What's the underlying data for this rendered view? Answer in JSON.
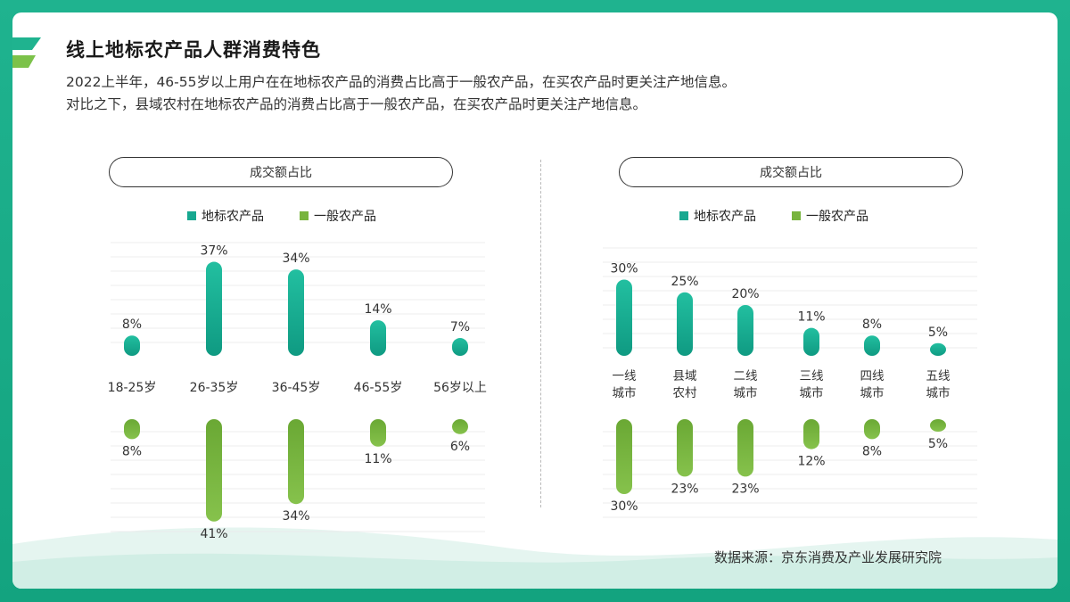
{
  "page": {
    "title": "线上地标农产品人群消费特色",
    "subtitle_lines": [
      "2022上半年，46-55岁以上用户在在地标农产品的消费占比高于一般农产品，在买农产品时更关注产地信息。",
      "对比之下，县域农村在地标农产品的消费占比高于一般农产品，在买农产品时更关注产地信息。"
    ],
    "source": "数据来源：京东消费及产业发展研究院"
  },
  "colors": {
    "geo": "#17a890",
    "general": "#78b43e",
    "frame": "#1aa888"
  },
  "chart_data": [
    {
      "type": "bar",
      "title": "成交额占比",
      "legend": [
        "地标农产品",
        "一般农产品"
      ],
      "categories": [
        "18-25岁",
        "26-35岁",
        "36-45岁",
        "46-55岁",
        "56岁以上"
      ],
      "series": [
        {
          "name": "地标农产品",
          "values": [
            8,
            37,
            34,
            14,
            7
          ],
          "labels": [
            "8%",
            "37%",
            "34%",
            "14%",
            "7%"
          ]
        },
        {
          "name": "一般农产品",
          "values": [
            8,
            41,
            34,
            11,
            6
          ],
          "labels": [
            "8%",
            "41%",
            "34%",
            "11%",
            "6%"
          ]
        }
      ]
    },
    {
      "type": "bar",
      "title": "成交额占比",
      "legend": [
        "地标农产品",
        "一般农产品"
      ],
      "categories": [
        [
          "一线",
          "城市"
        ],
        [
          "县域",
          "农村"
        ],
        [
          "二线",
          "城市"
        ],
        [
          "三线",
          "城市"
        ],
        [
          "四线",
          "城市"
        ],
        [
          "五线",
          "城市"
        ]
      ],
      "series": [
        {
          "name": "地标农产品",
          "values": [
            30,
            25,
            20,
            11,
            8,
            5
          ],
          "labels": [
            "30%",
            "25%",
            "20%",
            "11%",
            "8%",
            "5%"
          ]
        },
        {
          "name": "一般农产品",
          "values": [
            30,
            23,
            23,
            12,
            8,
            5
          ],
          "labels": [
            "30%",
            "23%",
            "23%",
            "12%",
            "8%",
            "5%"
          ]
        }
      ]
    }
  ]
}
